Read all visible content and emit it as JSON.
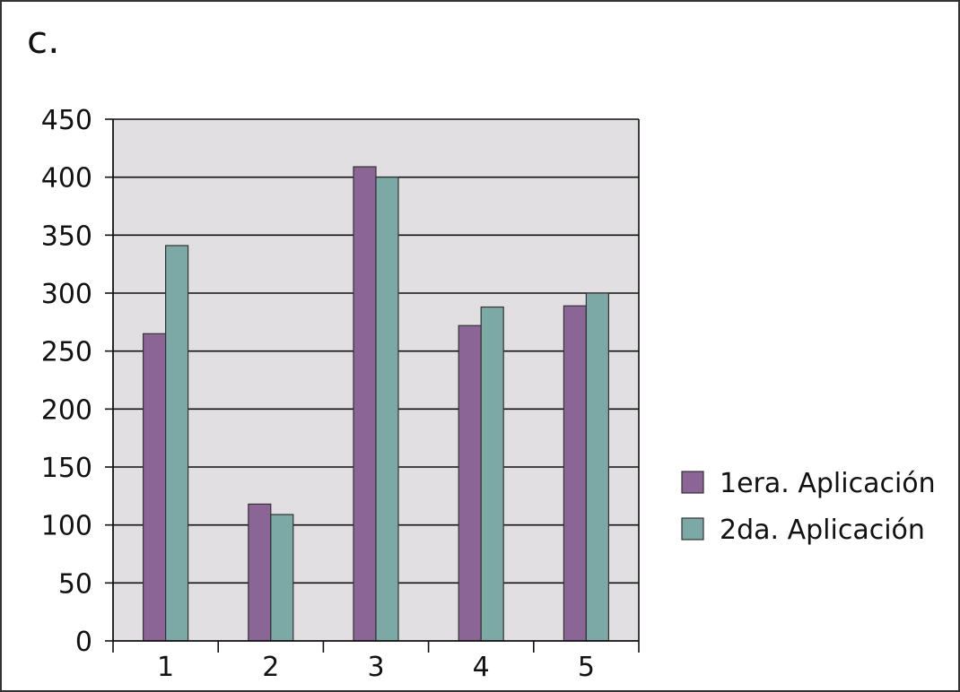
{
  "panel_label": "c.",
  "colors": {
    "plot_background": "#e2dfe2",
    "gridline": "#111111",
    "series_1": "#8a6596",
    "series_2": "#7ca8a5",
    "bar_outline": "#333333"
  },
  "chart_data": {
    "type": "bar",
    "categories": [
      "1",
      "2",
      "3",
      "4",
      "5"
    ],
    "series": [
      {
        "name": "1era. Aplicación",
        "values": [
          265,
          118,
          409,
          272,
          289
        ]
      },
      {
        "name": "2da. Aplicación",
        "values": [
          341,
          109,
          400,
          288,
          300
        ]
      }
    ],
    "ylim": [
      0,
      450
    ],
    "yticks": [
      "0",
      "50",
      "100",
      "150",
      "200",
      "250",
      "300",
      "350",
      "400",
      "450"
    ],
    "grid": true,
    "legend_position": "right",
    "title": "",
    "xlabel": "",
    "ylabel": ""
  }
}
